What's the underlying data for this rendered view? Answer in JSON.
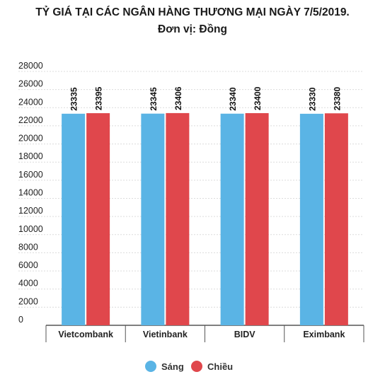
{
  "chart_data": {
    "type": "bar",
    "title": "TỶ GIÁ TẠI CÁC NGÂN HÀNG THƯƠNG MẠI NGÀY 7/5/2019.",
    "subtitle": "Đơn vị: Đồng",
    "categories": [
      "Vietcombank",
      "Vietinbank",
      "BIDV",
      "Eximbank"
    ],
    "series": [
      {
        "name": "Sáng",
        "color": "#5ab4e5",
        "values": [
          23335,
          23345,
          23340,
          23330
        ]
      },
      {
        "name": "Chiều",
        "color": "#e0474c",
        "values": [
          23395,
          23406,
          23400,
          23380
        ]
      }
    ],
    "ylim": [
      0,
      28000
    ],
    "yticks": [
      0,
      2000,
      4000,
      6000,
      8000,
      10000,
      12000,
      14000,
      16000,
      18000,
      20000,
      22000,
      24000,
      26000,
      28000
    ],
    "grid": true,
    "legend": "bottom"
  }
}
